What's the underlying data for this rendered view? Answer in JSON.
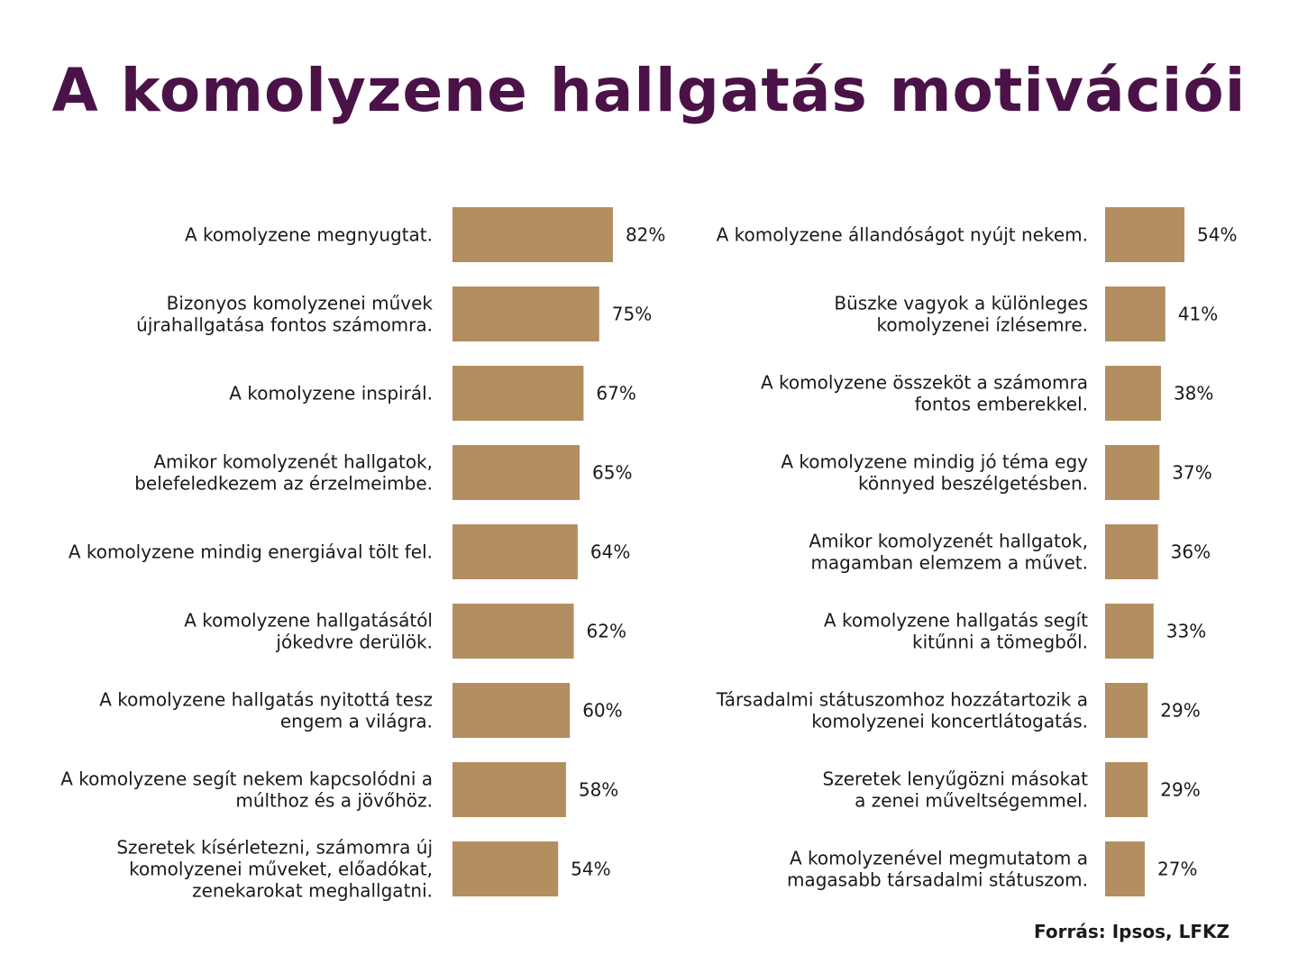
{
  "title": "A komolyzene hallgatás motivációi",
  "source": "Forrás: Ipsos, LFKZ",
  "colors": {
    "title": "#4b1248",
    "bar": "#b38e60",
    "text": "#1a1a1a"
  },
  "chart_data": [
    {
      "type": "bar",
      "orientation": "horizontal",
      "categories": [
        [
          "A komolyzene megnyugtat."
        ],
        [
          "Bizonyos komolyzenei művek",
          "újrahallgatása fontos számomra."
        ],
        [
          "A komolyzene inspirál."
        ],
        [
          "Amikor komolyzenét hallgatok,",
          "belefeledkezem az érzelmeimbe."
        ],
        [
          "A komolyzene mindig energiával tölt fel."
        ],
        [
          "A komolyzene hallgatásától",
          "jókedvre derülök."
        ],
        [
          "A komolyzene hallgatás nyitottá tesz",
          "engem a világra."
        ],
        [
          "A komolyzene segít nekem kapcsolódni a",
          "múlthoz és a jövőhöz."
        ],
        [
          "Szeretek kísérletezni, számomra új",
          "komolyzenei műveket, előadókat,",
          "zenekarokat meghallgatni."
        ]
      ],
      "values": [
        82,
        75,
        67,
        65,
        64,
        62,
        60,
        58,
        54
      ],
      "value_labels": [
        "82%",
        "75%",
        "67%",
        "65%",
        "64%",
        "62%",
        "60%",
        "58%",
        "54%"
      ],
      "unit": "%"
    },
    {
      "type": "bar",
      "orientation": "horizontal",
      "categories": [
        [
          "A komolyzene állandóságot nyújt nekem."
        ],
        [
          "Büszke vagyok a különleges",
          "komolyzenei ízlésemre."
        ],
        [
          "A komolyzene összeköt a számomra",
          "fontos emberekkel."
        ],
        [
          "A komolyzene mindig jó téma egy",
          "könnyed beszélgetésben."
        ],
        [
          "Amikor komolyzenét hallgatok,",
          "magamban elemzem a művet."
        ],
        [
          "A komolyzene hallgatás segít",
          "kitűnni a tömegből."
        ],
        [
          "Társadalmi státuszomhoz hozzátartozik a",
          "komolyzenei koncertlátogatás."
        ],
        [
          "Szeretek lenyűgözni másokat",
          "a zenei műveltségemmel."
        ],
        [
          "A komolyzenével megmutatom a",
          "magasabb társadalmi státuszom."
        ]
      ],
      "values": [
        54,
        41,
        38,
        37,
        36,
        33,
        29,
        29,
        27
      ],
      "value_labels": [
        "54%",
        "41%",
        "38%",
        "37%",
        "36%",
        "33%",
        "29%",
        "29%",
        "27%"
      ],
      "unit": "%"
    }
  ]
}
